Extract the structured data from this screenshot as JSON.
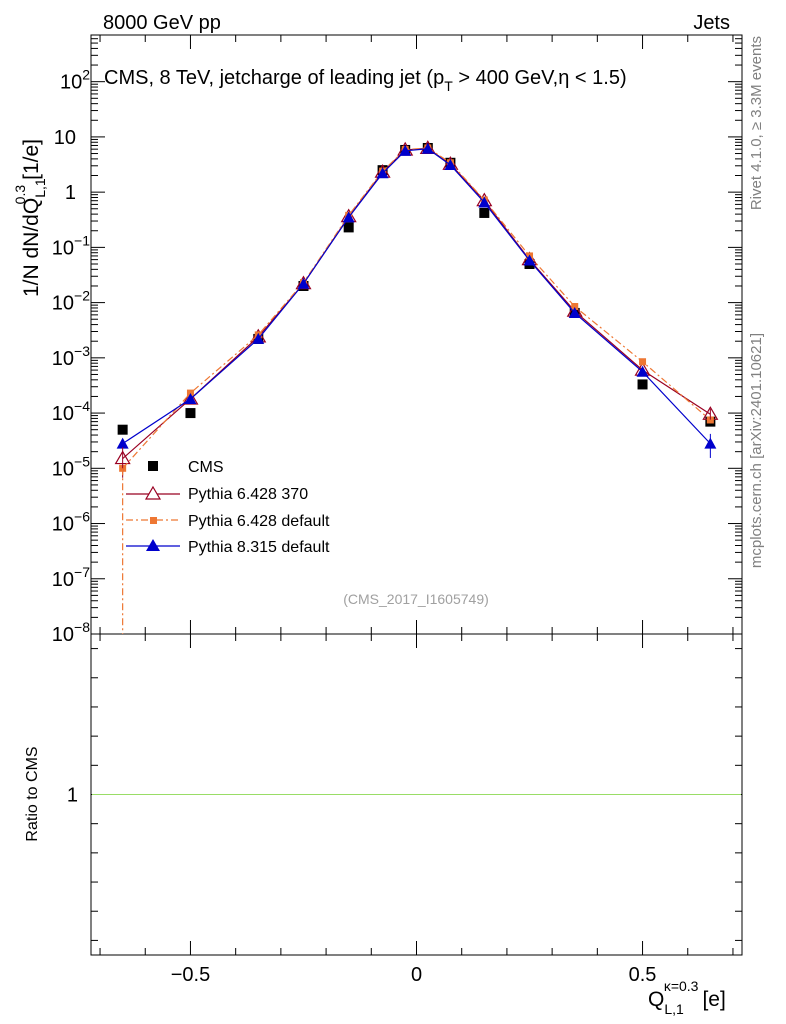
{
  "header": {
    "left": "8000 GeV pp",
    "right": "Jets"
  },
  "side_labels": {
    "rivet": "Rivet 4.1.0, ≥ 3.3M events",
    "mcplots": "mcplots.cern.ch [arXiv:2401.10621]"
  },
  "chart_data": {
    "type": "scatter",
    "title": "CMS, 8 TeV, jetcharge of leading jet (p_T > 400 GeV,η < 1.5)",
    "title_parts": {
      "main": "CMS, 8 TeV, jetcharge of leading jet (p",
      "sub": "T",
      "rest": " > 400 GeV,η < 1.5)"
    },
    "analysis_id": "(CMS_2017_I1605749)",
    "xlabel": "Q",
    "xlabel_sub": "L,1",
    "xlabel_sup": "κ=0.3",
    "xlabel_unit": "[e]",
    "ylabel": "1/N dN/dQ",
    "ylabel_sub": "L,1",
    "ylabel_sup": "0.3",
    "ylabel_unit": "[1/e]",
    "ratio_ylabel": "Ratio to CMS",
    "xlim": [
      -0.72,
      0.72
    ],
    "ylim": [
      1e-08,
      700
    ],
    "ratio_ylim": [
      0.45,
      1.55
    ],
    "x_ticks": [
      {
        "v": -0.5,
        "label": "−0.5"
      },
      {
        "v": 0,
        "label": "0"
      },
      {
        "v": 0.5,
        "label": "0.5"
      }
    ],
    "y_ticks": [
      {
        "v": 1e-08,
        "base": "10",
        "exp": "−8"
      },
      {
        "v": 1e-07,
        "base": "10",
        "exp": "−7"
      },
      {
        "v": 1e-06,
        "base": "10",
        "exp": "−6"
      },
      {
        "v": 1e-05,
        "base": "10",
        "exp": "−5"
      },
      {
        "v": 0.0001,
        "base": "10",
        "exp": "−4"
      },
      {
        "v": 0.001,
        "base": "10",
        "exp": "−3"
      },
      {
        "v": 0.01,
        "base": "10",
        "exp": "−2"
      },
      {
        "v": 0.1,
        "base": "10",
        "exp": "−1"
      },
      {
        "v": 1,
        "base": "1",
        "exp": ""
      },
      {
        "v": 10,
        "base": "10",
        "exp": ""
      },
      {
        "v": 100,
        "base": "10",
        "exp": "2"
      }
    ],
    "ratio_ticks": [
      {
        "v": 1,
        "label": "1"
      }
    ],
    "series": [
      {
        "name": "CMS",
        "color": "#000000",
        "marker": "square",
        "line": "none",
        "x": [
          -0.65,
          -0.5,
          -0.35,
          -0.25,
          -0.15,
          -0.075,
          -0.025,
          0.025,
          0.075,
          0.15,
          0.25,
          0.35,
          0.5,
          0.65
        ],
        "values": [
          5e-05,
          0.0001,
          0.0022,
          0.02,
          0.23,
          2.5,
          5.8,
          6.3,
          3.4,
          0.42,
          0.05,
          0.0065,
          0.00033,
          7e-05
        ]
      },
      {
        "name": "Pythia 6.428 370",
        "color": "#990022",
        "marker": "triangle-open",
        "line": "solid",
        "x": [
          -0.65,
          -0.5,
          -0.35,
          -0.25,
          -0.15,
          -0.075,
          -0.025,
          0.025,
          0.075,
          0.15,
          0.25,
          0.35,
          0.5,
          0.65
        ],
        "values": [
          1.5e-05,
          0.00018,
          0.0024,
          0.022,
          0.36,
          2.3,
          5.8,
          6.2,
          3.2,
          0.7,
          0.06,
          0.007,
          0.0006,
          9.5e-05
        ]
      },
      {
        "name": "Pythia 6.428 default",
        "color": "#ee7733",
        "marker": "square-small",
        "line": "dashdot",
        "x": [
          -0.65,
          -0.5,
          -0.35,
          -0.25,
          -0.15,
          -0.075,
          -0.025,
          0.025,
          0.075,
          0.15,
          0.25,
          0.35,
          0.5,
          0.65
        ],
        "values": [
          1e-05,
          0.00023,
          0.0026,
          0.023,
          0.38,
          2.4,
          5.9,
          6.3,
          3.4,
          0.72,
          0.07,
          0.0085,
          0.00085,
          7.5e-05
        ]
      },
      {
        "name": "Pythia 8.315 default",
        "color": "#0000cc",
        "marker": "triangle",
        "line": "solid",
        "x": [
          -0.65,
          -0.5,
          -0.35,
          -0.25,
          -0.15,
          -0.075,
          -0.025,
          0.025,
          0.075,
          0.15,
          0.25,
          0.35,
          0.5,
          0.65
        ],
        "values": [
          2.8e-05,
          0.00018,
          0.0022,
          0.022,
          0.35,
          2.2,
          5.6,
          6.1,
          3.1,
          0.65,
          0.058,
          0.0065,
          0.00056,
          2.8e-05
        ]
      }
    ],
    "legend_position": "bottom-left of main panel",
    "ratio_reference_line": {
      "value": 1,
      "color": "#99dd66"
    }
  }
}
